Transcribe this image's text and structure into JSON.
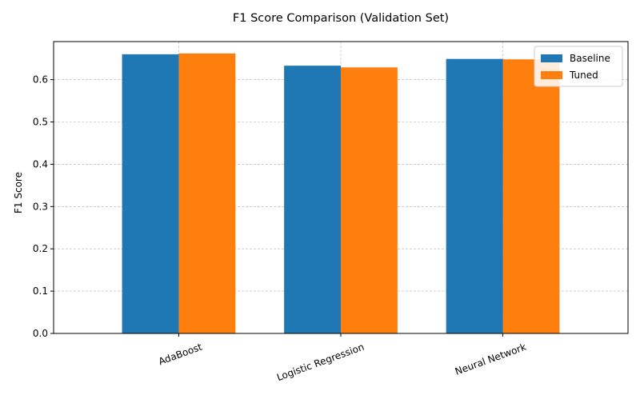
{
  "chart_data": {
    "type": "bar",
    "title": "F1 Score Comparison (Validation Set)",
    "xlabel": "",
    "ylabel": "F1 Score",
    "categories": [
      "AdaBoost",
      "Logistic Regression",
      "Neural Network"
    ],
    "series": [
      {
        "name": "Baseline",
        "color": "#1f77b4",
        "values": [
          0.66,
          0.633,
          0.649
        ]
      },
      {
        "name": "Tuned",
        "color": "#ff7f0e",
        "values": [
          0.662,
          0.629,
          0.648
        ]
      }
    ],
    "ylim": [
      0,
      0.69
    ],
    "yticks": [
      "0.0",
      "0.1",
      "0.2",
      "0.3",
      "0.4",
      "0.5",
      "0.6"
    ],
    "x_tick_rotation_deg": 20,
    "grid": true,
    "legend_position": "top-right"
  }
}
